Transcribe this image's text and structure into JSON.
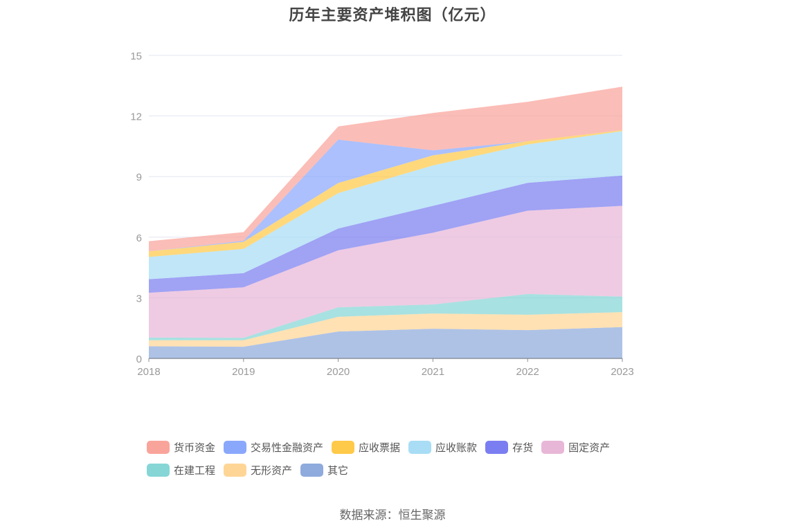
{
  "title": "历年主要资产堆积图（亿元）",
  "source": "数据来源：恒生聚源",
  "chart_data": {
    "type": "area",
    "stacked": true,
    "x": [
      "2018",
      "2019",
      "2020",
      "2021",
      "2022",
      "2023"
    ],
    "ylim": [
      0,
      15
    ],
    "yticks": [
      "0",
      "3",
      "6",
      "9",
      "12",
      "15"
    ],
    "grid": true,
    "legend_position": "bottom",
    "series": [
      {
        "name": "其它",
        "color": "#8faadc",
        "values": [
          0.6,
          0.58,
          1.33,
          1.47,
          1.4,
          1.55
        ]
      },
      {
        "name": "无形资产",
        "color": "#ffd596",
        "values": [
          0.3,
          0.32,
          0.73,
          0.75,
          0.76,
          0.74
        ]
      },
      {
        "name": "在建工程",
        "color": "#86d6d6",
        "values": [
          0.13,
          0.12,
          0.47,
          0.45,
          1.03,
          0.77
        ]
      },
      {
        "name": "固定资产",
        "color": "#e8b7d8",
        "values": [
          2.22,
          2.5,
          2.82,
          3.55,
          4.12,
          4.49
        ]
      },
      {
        "name": "存货",
        "color": "#7b7ef0",
        "values": [
          0.67,
          0.7,
          1.08,
          1.33,
          1.38,
          1.5
        ]
      },
      {
        "name": "应收账款",
        "color": "#a8ddf5",
        "values": [
          1.1,
          1.2,
          1.75,
          2.0,
          1.9,
          2.2
        ]
      },
      {
        "name": "应收票据",
        "color": "#ffc94a",
        "values": [
          0.28,
          0.35,
          0.5,
          0.5,
          0.16,
          0.05
        ]
      },
      {
        "name": "交易性金融资产",
        "color": "#8aa8fb",
        "values": [
          0.0,
          0.05,
          2.15,
          0.25,
          0.0,
          0.0
        ]
      },
      {
        "name": "货币资金",
        "color": "#f9a49b",
        "values": [
          0.5,
          0.43,
          0.65,
          1.85,
          1.95,
          2.15
        ]
      }
    ]
  }
}
